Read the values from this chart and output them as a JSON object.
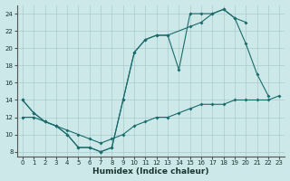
{
  "xlabel": "Humidex (Indice chaleur)",
  "bg_color": "#cce8e8",
  "line_color": "#1a6b6b",
  "grid_color": "#aacccc",
  "xlim": [
    -0.5,
    23.5
  ],
  "ylim": [
    7.5,
    25
  ],
  "xticks": [
    0,
    1,
    2,
    3,
    4,
    5,
    6,
    7,
    8,
    9,
    10,
    11,
    12,
    13,
    14,
    15,
    16,
    17,
    18,
    19,
    20,
    21,
    22,
    23
  ],
  "yticks": [
    8,
    10,
    12,
    14,
    16,
    18,
    20,
    22,
    24
  ],
  "line1_x": [
    0,
    1,
    2,
    3,
    4,
    5,
    6,
    7,
    8,
    9,
    10,
    11,
    12,
    13,
    14,
    15,
    16,
    17,
    18,
    19,
    20,
    21,
    22
  ],
  "line1_y": [
    14,
    12.5,
    11.5,
    11,
    10,
    8.5,
    8.5,
    8,
    8.5,
    14,
    19.5,
    21,
    21.5,
    21.5,
    17.5,
    24,
    24,
    24,
    24.5,
    23.5,
    20.5,
    17,
    14.5
  ],
  "line2_x": [
    0,
    1,
    2,
    3,
    4,
    5,
    6,
    7,
    8,
    9,
    10,
    11,
    12,
    13,
    15,
    16,
    17,
    18,
    19,
    20
  ],
  "line2_y": [
    14,
    12.5,
    11.5,
    11,
    10,
    8.5,
    8.5,
    8,
    8.5,
    14,
    19.5,
    21,
    21.5,
    21.5,
    22.5,
    23,
    24,
    24.5,
    23.5,
    23
  ],
  "line3_x": [
    0,
    1,
    2,
    3,
    4,
    5,
    6,
    7,
    8,
    9,
    10,
    11,
    12,
    13,
    14,
    15,
    16,
    17,
    18,
    19,
    20,
    21,
    22,
    23
  ],
  "line3_y": [
    12,
    12,
    11.5,
    11,
    10.5,
    10,
    9.5,
    9,
    9.5,
    10,
    11,
    11.5,
    12,
    12,
    12.5,
    13,
    13.5,
    13.5,
    13.5,
    14,
    14,
    14,
    14,
    14.5
  ]
}
